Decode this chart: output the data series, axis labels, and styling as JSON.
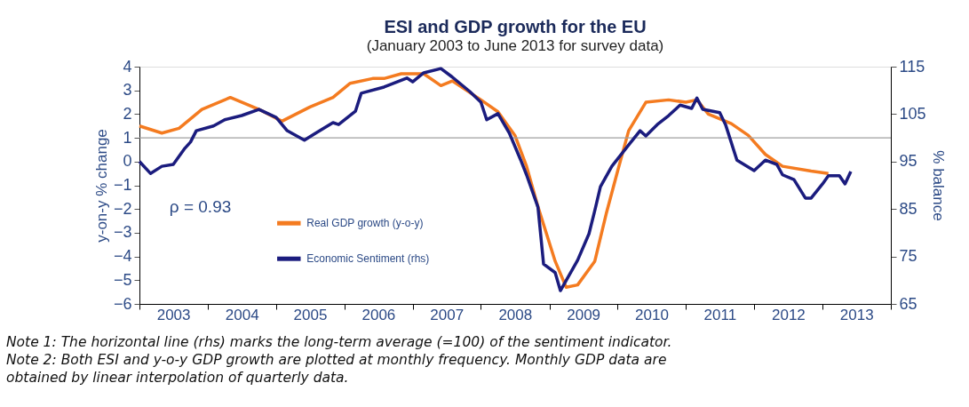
{
  "chart_data": {
    "type": "line",
    "title": "ESI and GDP growth for the EU",
    "subtitle": "(January 2003 to June 2013 for survey data)",
    "ylabel": "y-on-y % change",
    "y2label": "% balance",
    "xlim": [
      "2003-01",
      "2014-01"
    ],
    "xticks": [
      {
        "value": "2003-01",
        "label": null
      },
      {
        "value": "2003-07",
        "label": "2003"
      },
      {
        "value": "2004-01",
        "label": null
      },
      {
        "value": "2004-07",
        "label": "2004"
      },
      {
        "value": "2005-01",
        "label": null
      },
      {
        "value": "2005-07",
        "label": "2005"
      },
      {
        "value": "2006-01",
        "label": null
      },
      {
        "value": "2006-07",
        "label": "2006"
      },
      {
        "value": "2007-01",
        "label": null
      },
      {
        "value": "2007-07",
        "label": "2007"
      },
      {
        "value": "2008-01",
        "label": null
      },
      {
        "value": "2008-07",
        "label": "2008"
      },
      {
        "value": "2009-01",
        "label": null
      },
      {
        "value": "2009-07",
        "label": "2009"
      },
      {
        "value": "2010-01",
        "label": null
      },
      {
        "value": "2010-07",
        "label": "2010"
      },
      {
        "value": "2011-01",
        "label": null
      },
      {
        "value": "2011-07",
        "label": "2011"
      },
      {
        "value": "2012-01",
        "label": null
      },
      {
        "value": "2012-07",
        "label": "2012"
      },
      {
        "value": "2013-01",
        "label": null
      },
      {
        "value": "2013-07",
        "label": "2013"
      },
      {
        "value": "2014-01",
        "label": null
      }
    ],
    "ylim": [
      -6,
      4
    ],
    "yticks": [
      -6,
      -5,
      -4,
      -3,
      -2,
      -1,
      0,
      1,
      2,
      3,
      4
    ],
    "y2lim": [
      65,
      115
    ],
    "y2ticks": [
      65,
      75,
      85,
      95,
      105,
      115
    ],
    "series": [
      {
        "name": "Real GDP growth (y-o-y)",
        "color": "#f47b20",
        "x": [
          "2003-01",
          "2003-05",
          "2003-08",
          "2003-12",
          "2004-05",
          "2004-10",
          "2005-02",
          "2005-07",
          "2005-11",
          "2006-02",
          "2006-06",
          "2006-08",
          "2006-11",
          "2007-03",
          "2007-06",
          "2007-08",
          "2008-01",
          "2008-04",
          "2008-07",
          "2008-09",
          "2008-11",
          "2009-02",
          "2009-04",
          "2009-06",
          "2009-09",
          "2009-11",
          "2010-01",
          "2010-03",
          "2010-06",
          "2010-10",
          "2011-01",
          "2011-03",
          "2011-05",
          "2011-09",
          "2011-12",
          "2012-03",
          "2012-06",
          "2012-11",
          "2013-02"
        ],
        "values": [
          1.5,
          1.2,
          1.4,
          2.2,
          2.7,
          2.2,
          1.7,
          2.3,
          2.7,
          3.3,
          3.5,
          3.5,
          3.7,
          3.7,
          3.2,
          3.4,
          2.6,
          2.1,
          1.1,
          -0.2,
          -1.9,
          -4.2,
          -5.3,
          -5.2,
          -4.2,
          -2.2,
          -0.4,
          1.3,
          2.5,
          2.6,
          2.5,
          2.6,
          2.0,
          1.6,
          1.1,
          0.3,
          -0.2,
          -0.4,
          -0.5
        ]
      },
      {
        "name": "Economic Sentiment (rhs)",
        "color": "#1b1c7e",
        "axis": "y2",
        "x": [
          "2003-01",
          "2003-03",
          "2003-05",
          "2003-07",
          "2003-09",
          "2003-10",
          "2003-11",
          "2004-02",
          "2004-04",
          "2004-07",
          "2004-10",
          "2005-01",
          "2005-03",
          "2005-06",
          "2005-08",
          "2005-11",
          "2005-12",
          "2006-03",
          "2006-04",
          "2006-08",
          "2006-12",
          "2007-01",
          "2007-03",
          "2007-06",
          "2007-08",
          "2007-11",
          "2008-01",
          "2008-02",
          "2008-04",
          "2008-06",
          "2008-08",
          "2008-09",
          "2008-11",
          "2008-12",
          "2009-02",
          "2009-03",
          "2009-06",
          "2009-08",
          "2009-09",
          "2009-10",
          "2009-12",
          "2010-03",
          "2010-05",
          "2010-06",
          "2010-08",
          "2010-10",
          "2010-12",
          "2011-02",
          "2011-03",
          "2011-04",
          "2011-07",
          "2011-08",
          "2011-10",
          "2012-01",
          "2012-03",
          "2012-05",
          "2012-06",
          "2012-08",
          "2012-10",
          "2012-11",
          "2013-01",
          "2013-02",
          "2013-04",
          "2013-05",
          "2013-06"
        ],
        "values": [
          95.0,
          92.5,
          94.0,
          94.4,
          97.8,
          99.1,
          101.5,
          102.5,
          103.8,
          104.7,
          106.0,
          104.3,
          101.5,
          99.5,
          101.0,
          103.2,
          102.8,
          105.6,
          109.4,
          110.7,
          112.6,
          111.8,
          113.7,
          114.6,
          112.8,
          109.8,
          107.5,
          103.8,
          105.1,
          101.0,
          95.3,
          92.2,
          85.4,
          73.4,
          71.6,
          67.8,
          74.2,
          79.8,
          84.7,
          89.7,
          94.0,
          98.5,
          101.5,
          100.4,
          102.8,
          104.7,
          106.9,
          106.2,
          108.4,
          106.0,
          105.3,
          102.8,
          95.3,
          93.1,
          95.3,
          94.4,
          92.2,
          91.2,
          87.3,
          87.3,
          90.3,
          92.0,
          92.0,
          90.3,
          92.9
        ]
      }
    ],
    "ref_lines": [
      {
        "axis": "y2",
        "value": 100,
        "color": "#a0a0a0"
      }
    ],
    "annotations": [
      "ρ = 0.93",
      "Note 1: The horizontal line (rhs) marks the long-term average (=100) of the sentiment indicator.",
      "Note 2: Both ESI and y-o-y GDP growth are plotted at monthly frequency. Monthly GDP data are obtained by linear interpolation of quarterly data."
    ],
    "legend": "bottom left",
    "grid": false,
    "marker": "none",
    "line_style": "solid"
  }
}
